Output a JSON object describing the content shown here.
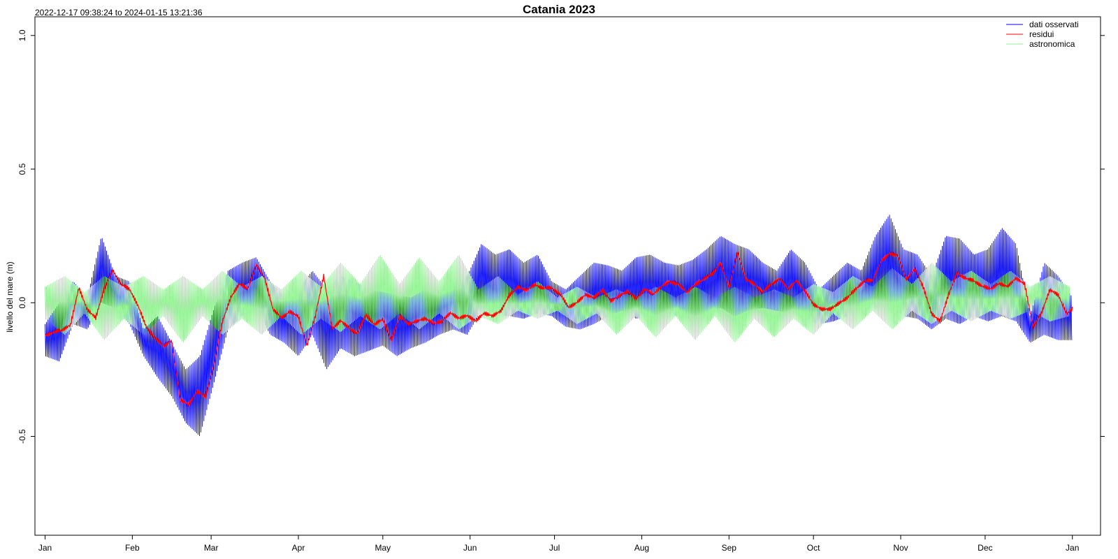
{
  "chart_data": {
    "type": "line",
    "title": "Catania 2023",
    "date_range_text": "2022-12-17 09:38:24 to 2024-01-15 13:21:36",
    "ylabel": "livello del mare (m)",
    "xlabel": "",
    "ylim": [
      -0.87,
      1.07
    ],
    "y_ticks": [
      -0.5,
      0.0,
      0.5,
      1.0
    ],
    "y_tick_labels": [
      "-0.5",
      "0.0",
      "0.5",
      "1.0"
    ],
    "x_domain_days": [
      -3.6,
      375
    ],
    "x_ticks": [
      {
        "label": "Jan",
        "day": 0
      },
      {
        "label": "Feb",
        "day": 31
      },
      {
        "label": "Mar",
        "day": 59
      },
      {
        "label": "Apr",
        "day": 90
      },
      {
        "label": "May",
        "day": 120
      },
      {
        "label": "Jun",
        "day": 151
      },
      {
        "label": "Jul",
        "day": 181
      },
      {
        "label": "Aug",
        "day": 212
      },
      {
        "label": "Sep",
        "day": 243
      },
      {
        "label": "Oct",
        "day": 273
      },
      {
        "label": "Nov",
        "day": 304
      },
      {
        "label": "Dec",
        "day": 334
      },
      {
        "label": "Jan",
        "day": 365
      }
    ],
    "legend_position": "top-right",
    "legend": [
      {
        "name": "dati osservati",
        "color": "#0000ff"
      },
      {
        "name": "residui",
        "color": "#ff0000"
      },
      {
        "name": "astronomica",
        "color": "#90ee90"
      }
    ],
    "series": [
      {
        "name": "residui",
        "color": "#ff0000",
        "x": [
          0,
          3,
          6,
          9,
          12,
          15,
          18,
          21,
          24,
          27,
          30,
          33,
          36,
          39,
          42,
          45,
          48,
          51,
          54,
          57,
          60,
          63,
          66,
          69,
          72,
          75,
          78,
          81,
          84,
          87,
          90,
          93,
          96,
          99,
          102,
          105,
          108,
          111,
          114,
          117,
          120,
          123,
          126,
          129,
          132,
          135,
          138,
          141,
          144,
          147,
          150,
          153,
          156,
          159,
          162,
          165,
          168,
          171,
          174,
          177,
          180,
          183,
          186,
          189,
          192,
          195,
          198,
          201,
          204,
          207,
          210,
          213,
          216,
          219,
          222,
          225,
          228,
          231,
          234,
          237,
          240,
          243,
          246,
          249,
          252,
          255,
          258,
          261,
          264,
          267,
          270,
          273,
          276,
          279,
          282,
          285,
          288,
          291,
          294,
          297,
          300,
          303,
          306,
          309,
          312,
          315,
          318,
          321,
          324,
          327,
          330,
          333,
          336,
          339,
          342,
          345,
          348,
          351,
          354,
          357,
          360,
          363,
          365
        ],
        "y": [
          -0.12,
          -0.11,
          -0.1,
          -0.08,
          0.06,
          -0.02,
          -0.05,
          0.06,
          0.13,
          0.08,
          0.06,
          0.0,
          -0.08,
          -0.12,
          -0.15,
          -0.13,
          -0.35,
          -0.37,
          -0.32,
          -0.34,
          -0.22,
          -0.06,
          0.03,
          0.08,
          0.06,
          0.15,
          0.1,
          -0.02,
          -0.05,
          -0.03,
          -0.05,
          -0.16,
          -0.05,
          0.1,
          -0.1,
          -0.07,
          -0.1,
          -0.12,
          -0.05,
          -0.09,
          -0.07,
          -0.15,
          -0.06,
          -0.09,
          -0.08,
          -0.07,
          -0.09,
          -0.08,
          -0.05,
          -0.07,
          -0.06,
          -0.08,
          -0.05,
          -0.06,
          -0.04,
          0.02,
          0.05,
          0.04,
          0.06,
          0.05,
          0.05,
          0.03,
          -0.02,
          0.0,
          0.03,
          0.02,
          0.05,
          0.01,
          0.03,
          0.05,
          0.02,
          0.06,
          0.04,
          0.07,
          0.09,
          0.08,
          0.05,
          0.08,
          0.1,
          0.12,
          0.16,
          0.07,
          0.2,
          0.1,
          0.08,
          0.05,
          0.08,
          0.1,
          0.06,
          0.09,
          0.05,
          0.0,
          -0.02,
          -0.02,
          0.0,
          0.02,
          0.05,
          0.08,
          0.08,
          0.15,
          0.18,
          0.17,
          0.08,
          0.12,
          0.05,
          -0.05,
          -0.08,
          0.02,
          0.1,
          0.08,
          0.07,
          0.05,
          0.04,
          0.06,
          0.05,
          0.08,
          0.06,
          -0.1,
          -0.05,
          0.04,
          0.02,
          -0.05,
          -0.03
        ]
      },
      {
        "name": "dati osservati",
        "color": "#0000ff",
        "envelope_x": [
          0,
          5,
          10,
          15,
          20,
          25,
          30,
          35,
          40,
          45,
          50,
          55,
          60,
          65,
          70,
          75,
          80,
          85,
          90,
          95,
          100,
          105,
          110,
          115,
          120,
          125,
          130,
          135,
          140,
          145,
          150,
          155,
          160,
          165,
          170,
          175,
          180,
          185,
          190,
          195,
          200,
          205,
          210,
          215,
          220,
          225,
          230,
          235,
          240,
          245,
          250,
          255,
          260,
          265,
          270,
          275,
          280,
          285,
          290,
          295,
          300,
          305,
          310,
          315,
          320,
          325,
          330,
          335,
          340,
          345,
          350,
          355,
          360,
          365
        ],
        "envelope_high": [
          -0.08,
          0.0,
          0.08,
          0.02,
          0.25,
          0.1,
          0.08,
          -0.1,
          -0.05,
          -0.15,
          -0.25,
          -0.2,
          -0.02,
          0.12,
          0.15,
          0.17,
          0.08,
          0.02,
          0.05,
          0.12,
          0.05,
          0.1,
          0.08,
          0.05,
          0.04,
          0.03,
          0.02,
          0.05,
          0.05,
          0.08,
          0.1,
          0.22,
          0.18,
          0.2,
          0.15,
          0.18,
          0.08,
          0.05,
          0.1,
          0.15,
          0.14,
          0.12,
          0.17,
          0.18,
          0.15,
          0.14,
          0.16,
          0.2,
          0.25,
          0.22,
          0.2,
          0.15,
          0.12,
          0.2,
          0.15,
          0.05,
          0.1,
          0.15,
          0.12,
          0.25,
          0.33,
          0.2,
          0.18,
          0.1,
          0.25,
          0.24,
          0.18,
          0.2,
          0.28,
          0.22,
          -0.05,
          0.15,
          0.1,
          0.02
        ],
        "envelope_low": [
          -0.2,
          -0.22,
          -0.08,
          -0.1,
          0.0,
          -0.02,
          -0.08,
          -0.2,
          -0.28,
          -0.35,
          -0.45,
          -0.5,
          -0.3,
          -0.1,
          -0.05,
          -0.02,
          -0.12,
          -0.15,
          -0.2,
          -0.12,
          -0.25,
          -0.17,
          -0.2,
          -0.18,
          -0.16,
          -0.2,
          -0.17,
          -0.15,
          -0.12,
          -0.1,
          -0.12,
          -0.03,
          -0.05,
          -0.05,
          -0.06,
          -0.04,
          -0.05,
          -0.09,
          -0.1,
          -0.08,
          -0.05,
          -0.03,
          -0.06,
          -0.05,
          -0.04,
          -0.05,
          -0.07,
          -0.05,
          -0.02,
          -0.05,
          -0.03,
          -0.02,
          -0.03,
          -0.04,
          -0.06,
          -0.08,
          -0.07,
          -0.05,
          -0.02,
          -0.02,
          -0.01,
          -0.05,
          -0.06,
          -0.1,
          -0.06,
          -0.08,
          -0.05,
          -0.07,
          -0.05,
          -0.07,
          -0.15,
          -0.12,
          -0.14,
          -0.14
        ]
      },
      {
        "name": "astronomica",
        "color": "#90ee90",
        "envelope_x": [
          0,
          7,
          14,
          21,
          28,
          35,
          42,
          49,
          56,
          63,
          70,
          77,
          84,
          91,
          98,
          105,
          112,
          119,
          126,
          133,
          140,
          147,
          154,
          161,
          168,
          175,
          182,
          189,
          196,
          203,
          210,
          217,
          224,
          231,
          238,
          245,
          252,
          259,
          266,
          273,
          280,
          287,
          294,
          301,
          308,
          315,
          322,
          329,
          336,
          343,
          350,
          357,
          364
        ],
        "envelope_high": [
          0.06,
          0.1,
          0.04,
          0.1,
          0.06,
          0.1,
          0.05,
          0.1,
          0.05,
          0.12,
          0.06,
          0.1,
          0.05,
          0.12,
          0.06,
          0.15,
          0.07,
          0.18,
          0.07,
          0.17,
          0.08,
          0.18,
          0.05,
          0.1,
          0.03,
          0.08,
          0.02,
          0.06,
          0.02,
          0.05,
          0.02,
          0.06,
          0.02,
          0.06,
          0.02,
          0.06,
          0.02,
          0.05,
          0.02,
          0.07,
          0.04,
          0.1,
          0.06,
          0.13,
          0.07,
          0.15,
          0.08,
          0.12,
          0.07,
          0.12,
          0.06,
          0.1,
          0.06
        ],
        "envelope_low": [
          -0.06,
          -0.12,
          -0.04,
          -0.14,
          -0.06,
          -0.12,
          -0.05,
          -0.15,
          -0.05,
          -0.12,
          -0.06,
          -0.12,
          -0.05,
          -0.12,
          -0.06,
          -0.11,
          -0.05,
          -0.1,
          -0.04,
          -0.1,
          -0.04,
          -0.1,
          -0.05,
          -0.08,
          -0.03,
          -0.06,
          -0.03,
          -0.08,
          -0.04,
          -0.12,
          -0.05,
          -0.13,
          -0.05,
          -0.14,
          -0.05,
          -0.15,
          -0.06,
          -0.13,
          -0.06,
          -0.12,
          -0.04,
          -0.1,
          -0.03,
          -0.1,
          -0.03,
          -0.08,
          -0.03,
          -0.07,
          -0.03,
          -0.06,
          -0.03,
          -0.07,
          -0.05
        ]
      }
    ]
  }
}
